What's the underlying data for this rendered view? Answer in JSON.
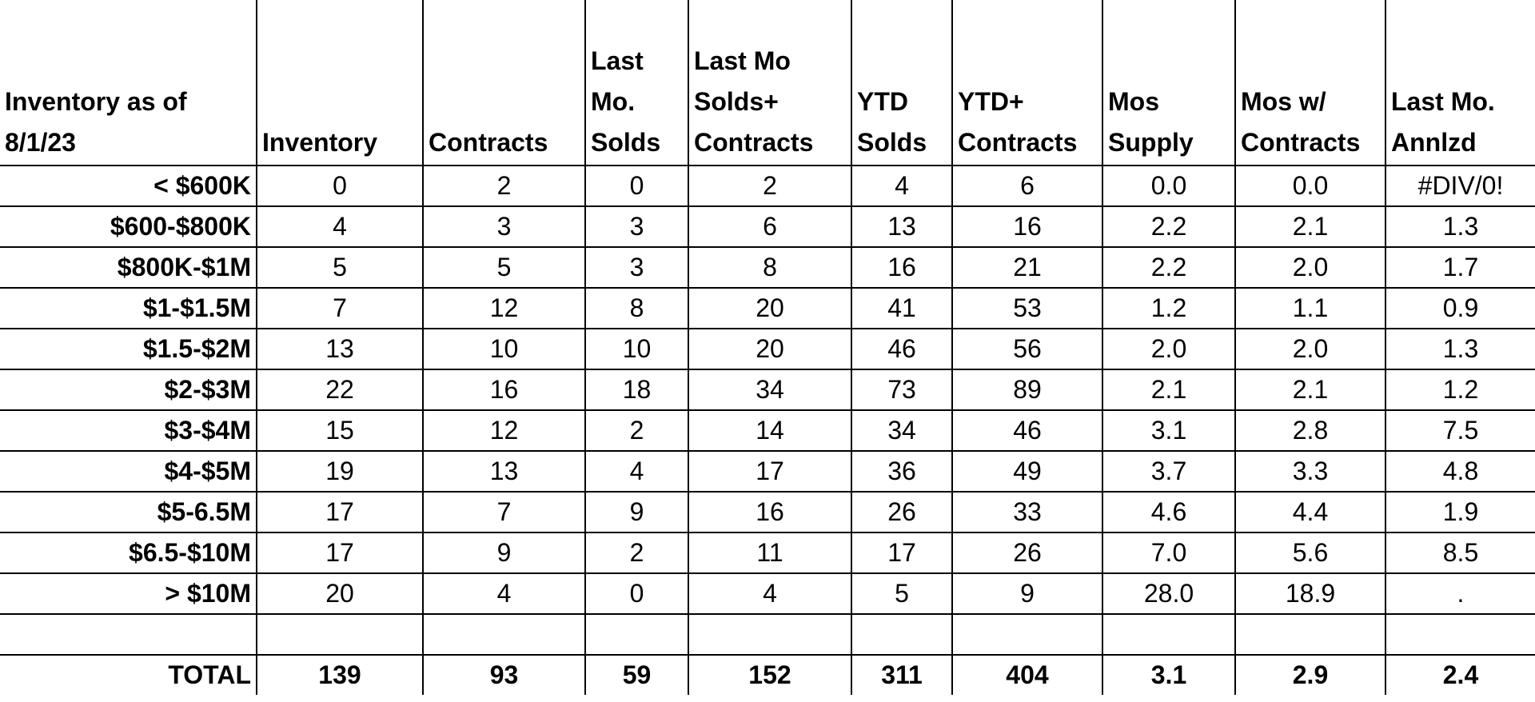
{
  "table": {
    "header": [
      [
        "Inventory as of",
        "8/1/23"
      ],
      [
        "Inventory"
      ],
      [
        "Contracts"
      ],
      [
        "Last",
        "Mo.",
        "Solds"
      ],
      [
        "Last Mo",
        "Solds+",
        "Contracts"
      ],
      [
        "YTD",
        "Solds"
      ],
      [
        "YTD+",
        "Contracts"
      ],
      [
        "Mos",
        "Supply"
      ],
      [
        "Mos w/",
        "Contracts"
      ],
      [
        "Last Mo.",
        "Annlzd"
      ]
    ],
    "rows": [
      [
        "< $600K",
        "0",
        "2",
        "0",
        "2",
        "4",
        "6",
        "0.0",
        "0.0",
        "#DIV/0!"
      ],
      [
        "$600-$800K",
        "4",
        "3",
        "3",
        "6",
        "13",
        "16",
        "2.2",
        "2.1",
        "1.3"
      ],
      [
        "$800K-$1M",
        "5",
        "5",
        "3",
        "8",
        "16",
        "21",
        "2.2",
        "2.0",
        "1.7"
      ],
      [
        "$1-$1.5M",
        "7",
        "12",
        "8",
        "20",
        "41",
        "53",
        "1.2",
        "1.1",
        "0.9"
      ],
      [
        "$1.5-$2M",
        "13",
        "10",
        "10",
        "20",
        "46",
        "56",
        "2.0",
        "2.0",
        "1.3"
      ],
      [
        "$2-$3M",
        "22",
        "16",
        "18",
        "34",
        "73",
        "89",
        "2.1",
        "2.1",
        "1.2"
      ],
      [
        "$3-$4M",
        "15",
        "12",
        "2",
        "14",
        "34",
        "46",
        "3.1",
        "2.8",
        "7.5"
      ],
      [
        "$4-$5M",
        "19",
        "13",
        "4",
        "17",
        "36",
        "49",
        "3.7",
        "3.3",
        "4.8"
      ],
      [
        "$5-6.5M",
        "17",
        "7",
        "9",
        "16",
        "26",
        "33",
        "4.6",
        "4.4",
        "1.9"
      ],
      [
        "$6.5-$10M",
        "17",
        "9",
        "2",
        "11",
        "17",
        "26",
        "7.0",
        "5.6",
        "8.5"
      ],
      [
        "> $10M",
        "20",
        "4",
        "0",
        "4",
        "5",
        "9",
        "28.0",
        "18.9",
        "."
      ]
    ],
    "total": [
      "TOTAL",
      "139",
      "93",
      "59",
      "152",
      "311",
      "404",
      "3.1",
      "2.9",
      "2.4"
    ]
  }
}
